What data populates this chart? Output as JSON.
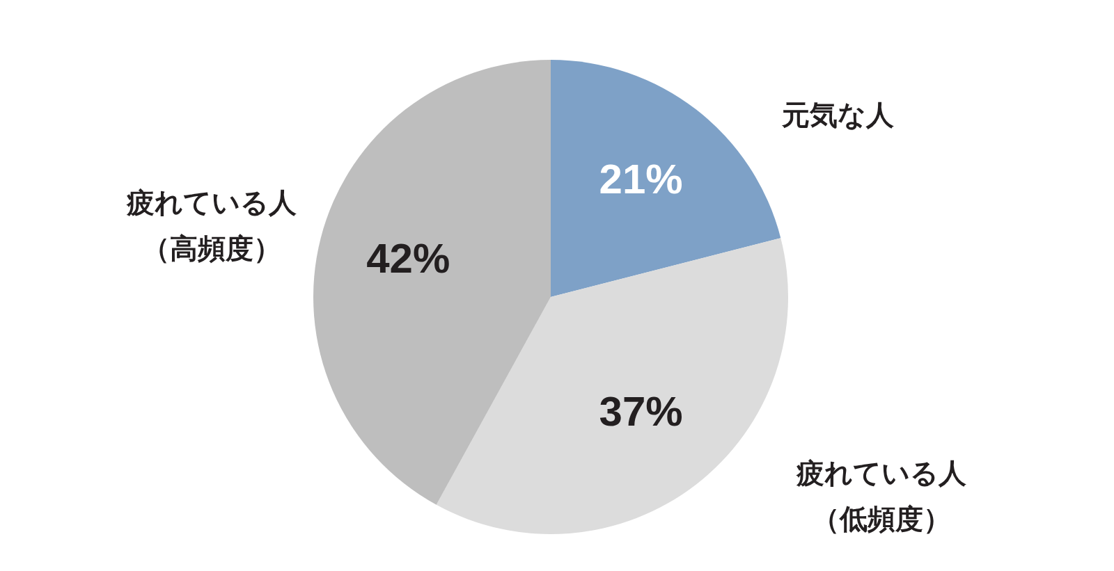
{
  "chart_data": {
    "type": "pie",
    "categories": [
      "元気な人",
      "疲れている人（低頻度）",
      "疲れている人（高頻度）"
    ],
    "values": [
      21,
      37,
      42
    ],
    "colors": [
      "#7ea1c7",
      "#dcdcdc",
      "#bebebe"
    ],
    "value_labels": [
      "21%",
      "37%",
      "42%"
    ]
  }
}
